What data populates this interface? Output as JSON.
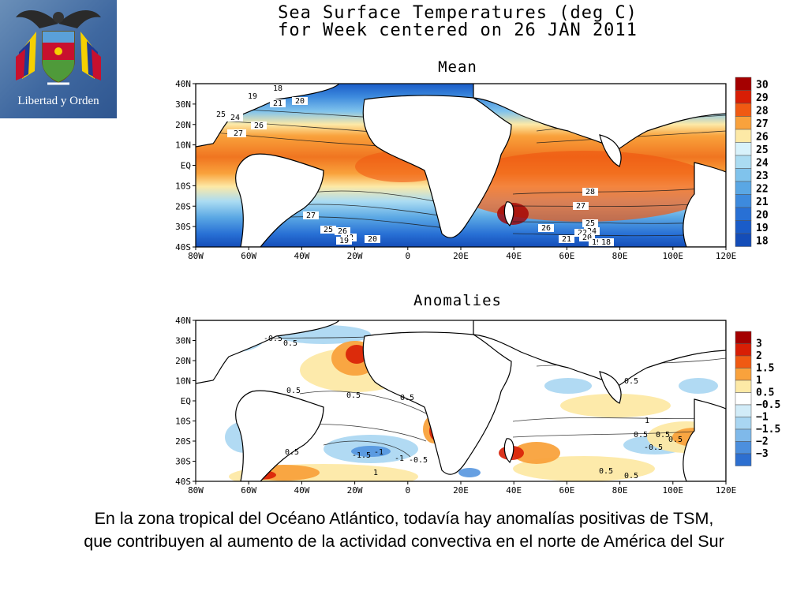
{
  "logo": {
    "motto": "Libertad y Orden",
    "icon": "colombia-coat-of-arms-icon"
  },
  "title": {
    "line1": "Sea Surface Temperatures (deg C)",
    "line2": "for Week centered on 26 JAN 2011"
  },
  "mean_panel": {
    "title": "Mean",
    "y_ticks": [
      "40N",
      "30N",
      "20N",
      "10N",
      "EQ",
      "10S",
      "20S",
      "30S",
      "40S"
    ],
    "x_ticks": [
      "80W",
      "60W",
      "40W",
      "20W",
      "0",
      "20E",
      "40E",
      "60E",
      "80E",
      "100E",
      "120E"
    ],
    "legend": {
      "labels": [
        "30",
        "29",
        "28",
        "27",
        "26",
        "25",
        "24",
        "23",
        "22",
        "21",
        "20",
        "19",
        "18"
      ],
      "colors": [
        "#a40000",
        "#d81e05",
        "#f05a12",
        "#f9a23c",
        "#fde9a6",
        "#d8f2fb",
        "#abdcf2",
        "#80c3ec",
        "#5aa7e4",
        "#3d8add",
        "#2870d5",
        "#1a5cc8",
        "#144db8"
      ]
    },
    "contour_labels": [
      "18",
      "19",
      "21",
      "20",
      "25",
      "24",
      "26",
      "25",
      "27",
      "28",
      "27",
      "27",
      "26",
      "25",
      "24",
      "22",
      "19",
      "20",
      "26",
      "25",
      "21",
      "22",
      "20",
      "19",
      "18"
    ]
  },
  "anom_panel": {
    "title": "Anomalies",
    "y_ticks": [
      "40N",
      "30N",
      "20N",
      "10N",
      "EQ",
      "10S",
      "20S",
      "30S",
      "40S"
    ],
    "x_ticks": [
      "80W",
      "60W",
      "40W",
      "20W",
      "0",
      "20E",
      "40E",
      "60E",
      "80E",
      "100E",
      "120E"
    ],
    "legend": {
      "labels": [
        "3",
        "2",
        "1.5",
        "1",
        "0.5",
        "−0.5",
        "−1",
        "−1.5",
        "−2",
        "−3"
      ],
      "colors": [
        "#a40000",
        "#d81e05",
        "#f05a12",
        "#f9a23c",
        "#fde9a6",
        "#ffffff",
        "#d2ecf8",
        "#a9d6f2",
        "#7fb9ea",
        "#4c8fdd",
        "#2d6fd0"
      ]
    },
    "contour_labels": [
      "-0.5",
      "0.5",
      "0.5",
      "0.5",
      "0.5",
      "0.5",
      "0.5",
      "-1",
      "-1.5",
      "-1",
      "-0.5",
      "1",
      "0.5",
      "0.5",
      "0.5",
      "-0.5",
      "1",
      "0.5",
      "0.5"
    ]
  },
  "caption": {
    "line1": "En la zona tropical del Océano Atlántico, todavía hay anomalías positivas de TSM,",
    "line2": "que contribuyen al aumento de la actividad convectiva en el norte de América del Sur"
  }
}
